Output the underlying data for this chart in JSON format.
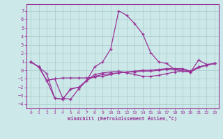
{
  "xlabel": "Windchill (Refroidissement éolien,°C)",
  "xlim": [
    -0.5,
    23.5
  ],
  "ylim": [
    -4.5,
    7.8
  ],
  "yticks": [
    -4,
    -3,
    -2,
    -1,
    0,
    1,
    2,
    3,
    4,
    5,
    6,
    7
  ],
  "xticks": [
    0,
    1,
    2,
    3,
    4,
    5,
    6,
    7,
    8,
    9,
    10,
    11,
    12,
    13,
    14,
    15,
    16,
    17,
    18,
    19,
    20,
    21,
    22,
    23
  ],
  "background_color": "#cce8e8",
  "grid_color": "#aacccc",
  "line_color": "#993399",
  "line1_y": [
    1.0,
    0.4,
    -0.4,
    -3.3,
    -3.4,
    -2.2,
    -2.0,
    -1.2,
    0.4,
    1.0,
    2.5,
    7.0,
    6.5,
    5.5,
    4.3,
    2.1,
    1.0,
    0.8,
    0.1,
    -0.1,
    -0.2,
    1.2,
    0.7,
    0.8
  ],
  "line2_y": [
    1.0,
    0.4,
    -1.2,
    -3.3,
    -3.4,
    -2.2,
    -2.0,
    -1.2,
    -0.7,
    -0.5,
    -0.4,
    -0.3,
    -0.2,
    -0.2,
    -0.1,
    -0.1,
    0.0,
    0.1,
    0.1,
    0.1,
    -0.2,
    0.4,
    0.6,
    0.8
  ],
  "line3_y": [
    1.0,
    0.4,
    -1.2,
    -1.0,
    -0.9,
    -0.9,
    -0.9,
    -0.9,
    -0.8,
    -0.7,
    -0.5,
    -0.3,
    -0.2,
    -0.1,
    0.0,
    0.0,
    0.1,
    0.2,
    0.2,
    0.2,
    -0.1,
    0.4,
    0.6,
    0.8
  ],
  "line4_y": [
    1.0,
    0.4,
    -1.2,
    -1.0,
    -3.3,
    -3.4,
    -2.2,
    -1.2,
    -0.5,
    -0.3,
    -0.2,
    -0.1,
    -0.3,
    -0.5,
    -0.7,
    -0.7,
    -0.6,
    -0.4,
    -0.2,
    -0.1,
    -0.2,
    0.3,
    0.6,
    0.8
  ]
}
